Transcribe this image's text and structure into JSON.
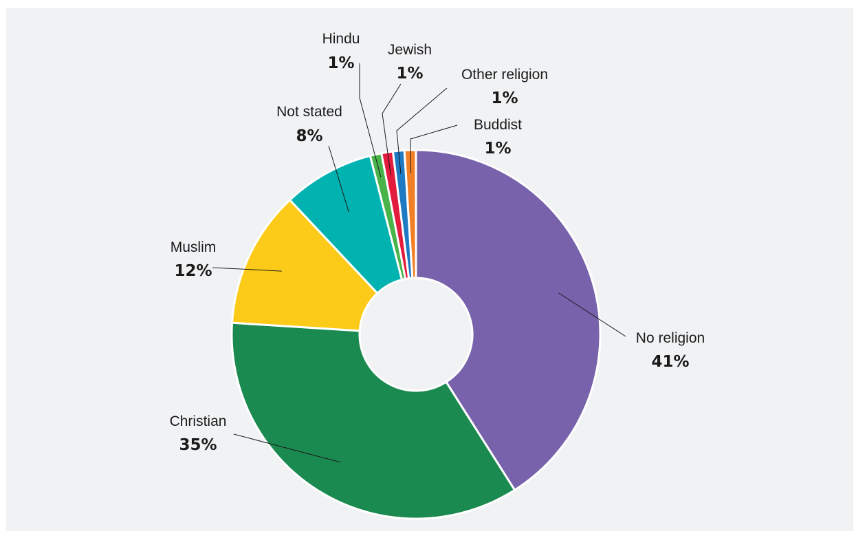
{
  "chart_data": {
    "type": "pie",
    "style": "donut",
    "title": "",
    "slices": [
      {
        "label": "No religion",
        "value": 41,
        "value_label": "41%",
        "color": "#7762ab"
      },
      {
        "label": "Christian",
        "value": 35,
        "value_label": "35%",
        "color": "#1b8a50"
      },
      {
        "label": "Muslim",
        "value": 12,
        "value_label": "12%",
        "color": "#fcca19"
      },
      {
        "label": "Not stated",
        "value": 8,
        "value_label": "8%",
        "color": "#00b2b0"
      },
      {
        "label": "Hindu",
        "value": 1,
        "value_label": "1%",
        "color": "#47b349"
      },
      {
        "label": "Jewish",
        "value": 1,
        "value_label": "1%",
        "color": "#e31b3c"
      },
      {
        "label": "Other religion",
        "value": 1,
        "value_label": "1%",
        "color": "#1f7ac4"
      },
      {
        "label": "Buddist",
        "value": 1,
        "value_label": "1%",
        "color": "#f07f25"
      }
    ],
    "legend": "none",
    "background": "#f1f2f4"
  }
}
